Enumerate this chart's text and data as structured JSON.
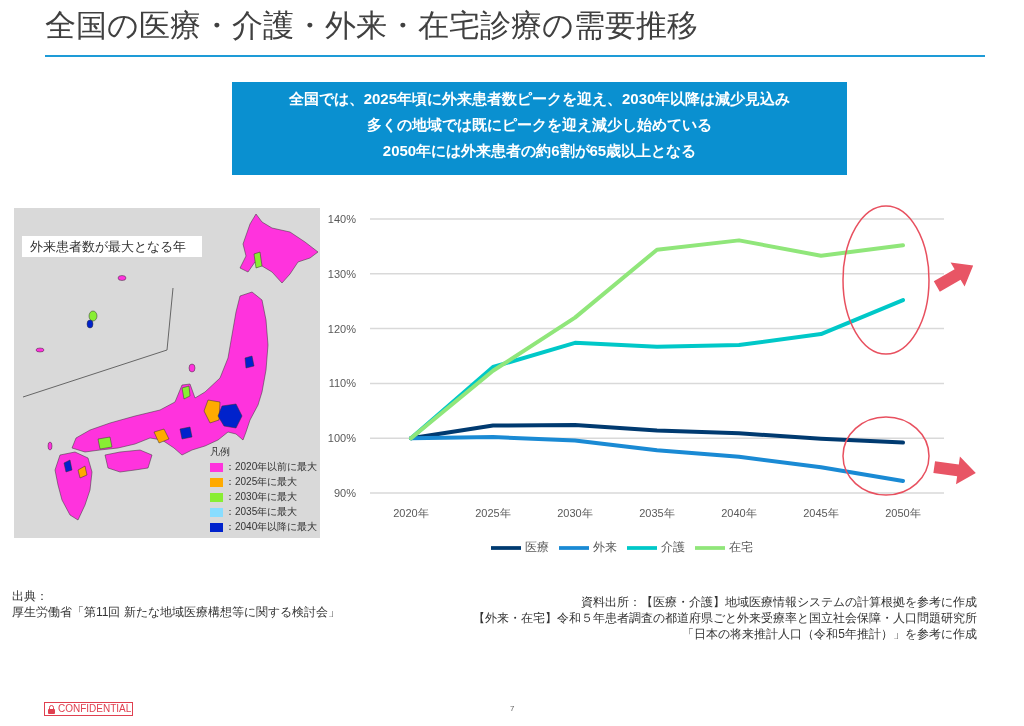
{
  "chart_data": {
    "type": "line",
    "title": "全国の医療・介護・外来・在宅診療の需要推移",
    "categories": [
      "2020年",
      "2025年",
      "2030年",
      "2035年",
      "2040年",
      "2045年",
      "2050年"
    ],
    "series": [
      {
        "name": "医療",
        "color": "#003a70",
        "values": [
          100,
          102.3,
          102.4,
          101.4,
          100.9,
          99.9,
          99.2
        ]
      },
      {
        "name": "外来",
        "color": "#1a8ad4",
        "values": [
          100,
          100.2,
          99.6,
          97.8,
          96.6,
          94.7,
          92.2
        ]
      },
      {
        "name": "介護",
        "color": "#00c8c8",
        "values": [
          100,
          113,
          117.4,
          116.7,
          117,
          119,
          125.2
        ]
      },
      {
        "name": "在宅",
        "color": "#90e67a",
        "values": [
          100,
          112.3,
          122,
          134.4,
          136.1,
          133.3,
          135.2
        ]
      }
    ],
    "ylim": [
      90,
      140
    ],
    "yticks": [
      {
        "value": 90,
        "label": "90%"
      },
      {
        "value": 100,
        "label": "100%"
      },
      {
        "value": 110,
        "label": "110%"
      },
      {
        "value": 120,
        "label": "120%"
      },
      {
        "value": 130,
        "label": "130%"
      },
      {
        "value": 140,
        "label": "140%"
      }
    ],
    "grid": "y",
    "legend": "bottom",
    "annotations": [
      "全国では、2025年頃に外来患者数ピークを迎え、2030年以降は減少見込み",
      "多くの地域では既にピークを迎え減少し始めている",
      "2050年には外来患者の約6割が65歳以上となる",
      "外来患者数が最大となる年",
      "凡例",
      "：2020年以前に最大",
      "：2025年に最大",
      "：2030年に最大",
      "：2035年に最大",
      "：2040年以降に最大",
      "出典：",
      "厚生労働省「第11回 新たな地域医療構想等に関する検討会」",
      "資料出所：【医療・介護】地域医療情報システムの計算根拠を参考に作成",
      "【外来・在宅】令和５年患者調査の都道府県ごと外来受療率と国立社会保障・人口問題研究所",
      "「日本の将来推計人口（令和5年推計）」を参考に作成",
      "CONFIDENTIAL",
      "7"
    ]
  }
}
